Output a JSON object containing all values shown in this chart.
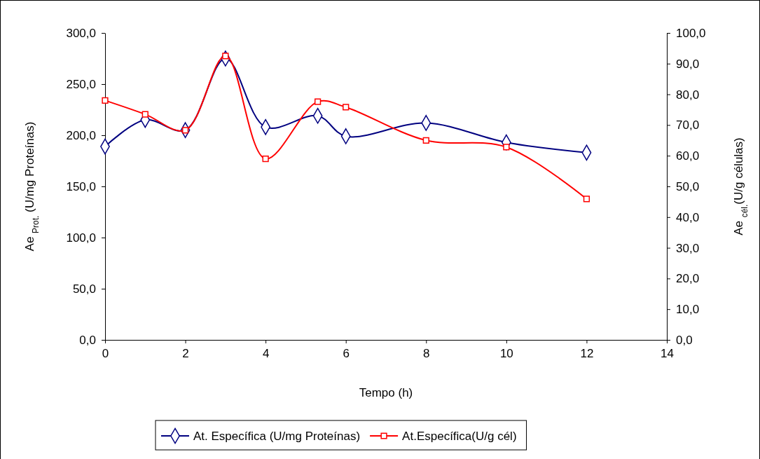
{
  "chart_data": {
    "type": "line",
    "xlabel": "Tempo (h)",
    "ylabel": "Ae $_{Prot.}$ (U/mg Proteínas)",
    "y2label": "Ae $_{cél.}$(U/g células)",
    "x": [
      0,
      1,
      2,
      3,
      4,
      5.3,
      6,
      8,
      10,
      12
    ],
    "series": [
      {
        "name": "At. Específica (U/mg Proteínas)",
        "color": "#000080",
        "marker": "diamond",
        "values": [
          189,
          215,
          205,
          275,
          208,
          219,
          199,
          212,
          193,
          183
        ]
      },
      {
        "name": "At.Específica(U/g cél)",
        "color": "#ff0000",
        "marker": "square",
        "axis": "y2",
        "values": [
          78,
          73.5,
          68.3,
          92.5,
          59,
          77.6,
          75.8,
          65,
          62.8,
          45.9
        ]
      }
    ],
    "xlim": [
      0,
      14
    ],
    "xticks": [
      0,
      2,
      4,
      6,
      8,
      10,
      12,
      14
    ],
    "ylim": [
      0,
      300
    ],
    "yticks": [
      {
        "value": 0,
        "label": "0,0"
      },
      {
        "value": 50,
        "label": "50,0"
      },
      {
        "value": 100,
        "label": "100,0"
      },
      {
        "value": 150,
        "label": "150,0"
      },
      {
        "value": 200,
        "label": "200,0"
      },
      {
        "value": 250,
        "label": "250,0"
      },
      {
        "value": 300,
        "label": "300,0"
      }
    ],
    "y2lim": [
      0,
      100
    ],
    "y2ticks": [
      {
        "value": 0,
        "label": "0,0"
      },
      {
        "value": 10,
        "label": "10,0"
      },
      {
        "value": 20,
        "label": "20,0"
      },
      {
        "value": 30,
        "label": "30,0"
      },
      {
        "value": 40,
        "label": "40,0"
      },
      {
        "value": 50,
        "label": "50,0"
      },
      {
        "value": 60,
        "label": "60,0"
      },
      {
        "value": 70,
        "label": "70,0"
      },
      {
        "value": 80,
        "label": "80,0"
      },
      {
        "value": 90,
        "label": "90,0"
      },
      {
        "value": 100,
        "label": "100,0"
      }
    ],
    "grid": false,
    "legend": "bottom",
    "line_style": "solid"
  }
}
